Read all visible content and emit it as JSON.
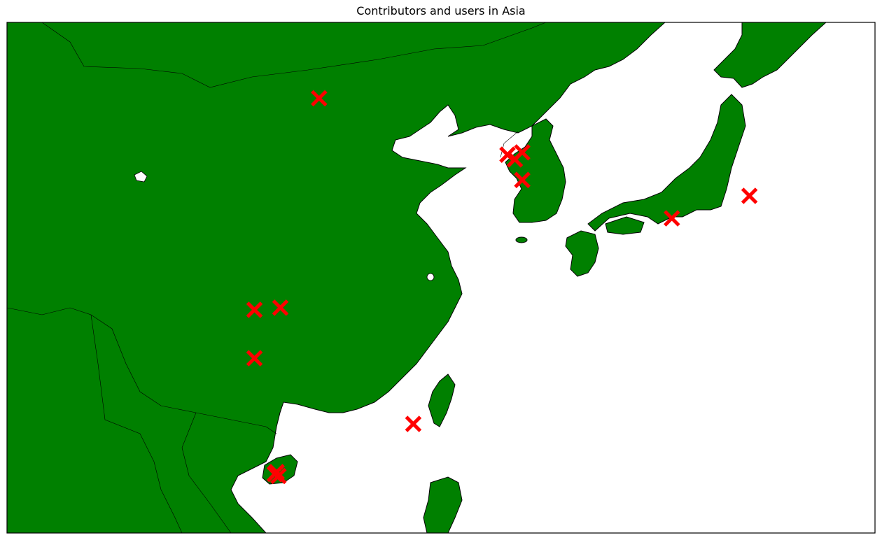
{
  "title": "Contributors and users in Asia",
  "colors": {
    "land": "#008000",
    "water": "#ffffff",
    "border": "#000000",
    "marker": "#ff0000"
  },
  "chart_data": {
    "type": "scatter",
    "projection": "mercator",
    "lon_range": [
      99.5,
      146.5
    ],
    "lat_range": [
      19.5,
      43.0
    ],
    "marker": "x",
    "marker_color": "#ff0000",
    "points": [
      {
        "lon": 116.4,
        "lat": 39.9
      },
      {
        "lon": 112.9,
        "lat": 28.2
      },
      {
        "lon": 114.3,
        "lat": 30.6
      },
      {
        "lon": 112.9,
        "lat": 30.5
      },
      {
        "lon": 114.1,
        "lat": 22.6
      },
      {
        "lon": 114.2,
        "lat": 22.4
      },
      {
        "lon": 114.0,
        "lat": 22.5
      },
      {
        "lon": 121.5,
        "lat": 25.0
      },
      {
        "lon": 126.6,
        "lat": 37.5
      },
      {
        "lon": 127.0,
        "lat": 37.3
      },
      {
        "lon": 127.4,
        "lat": 36.4
      },
      {
        "lon": 127.4,
        "lat": 37.6
      },
      {
        "lon": 135.5,
        "lat": 34.7
      },
      {
        "lon": 139.7,
        "lat": 35.7
      }
    ]
  }
}
